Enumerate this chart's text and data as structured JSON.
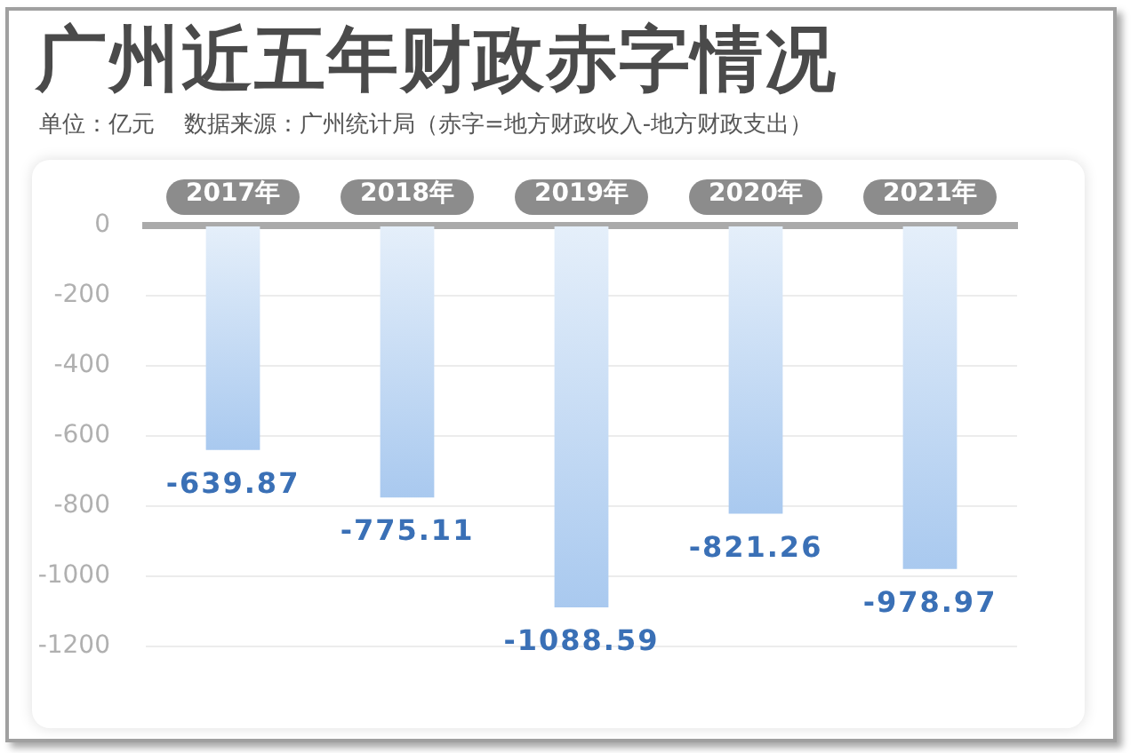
{
  "chart_data": {
    "type": "bar",
    "title": "广州近五年财政赤字情况",
    "subtitle": "单位：亿元    数据来源：广州统计局（赤字=地方财政收入-地方财政支出）",
    "categories": [
      "2017年",
      "2018年",
      "2019年",
      "2020年",
      "2021年"
    ],
    "values": [
      -639.87,
      -775.11,
      -1088.59,
      -821.26,
      -978.97
    ],
    "color": "#a9c9ef",
    "ylim": [
      -1200,
      0
    ],
    "yticks": [
      -1200,
      -1000,
      -800,
      -600,
      -400,
      -200,
      0
    ],
    "grid": "y",
    "data_labels": true
  }
}
